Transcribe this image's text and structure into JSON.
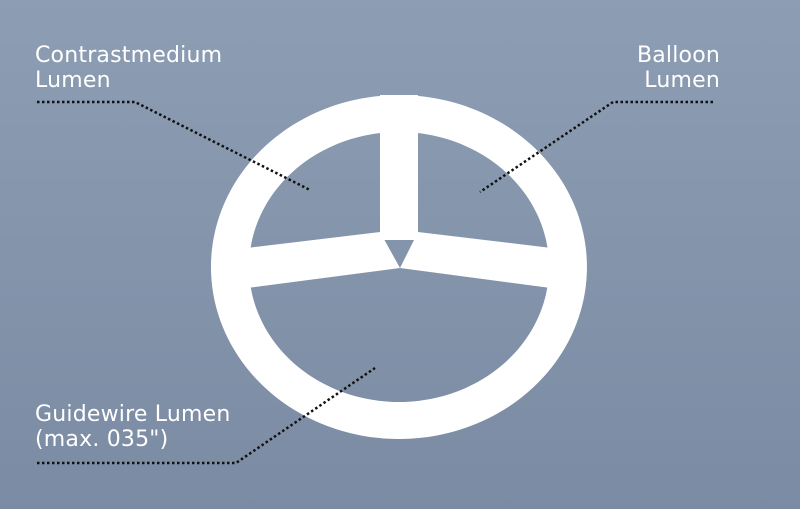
{
  "labels": {
    "contrast": {
      "line1": "Contrastmedium",
      "line2": "Lumen"
    },
    "balloon": {
      "line1": "Balloon",
      "line2": "Lumen"
    },
    "guidewire": {
      "line1": "Guidewire Lumen",
      "line2": "(max. 035\")"
    }
  },
  "colors": {
    "background_top": "#8d9db3",
    "background_bottom": "#7b8ba3",
    "catheter": "#ffffff",
    "leader_line": "#111111",
    "label_text": "#ffffff"
  }
}
